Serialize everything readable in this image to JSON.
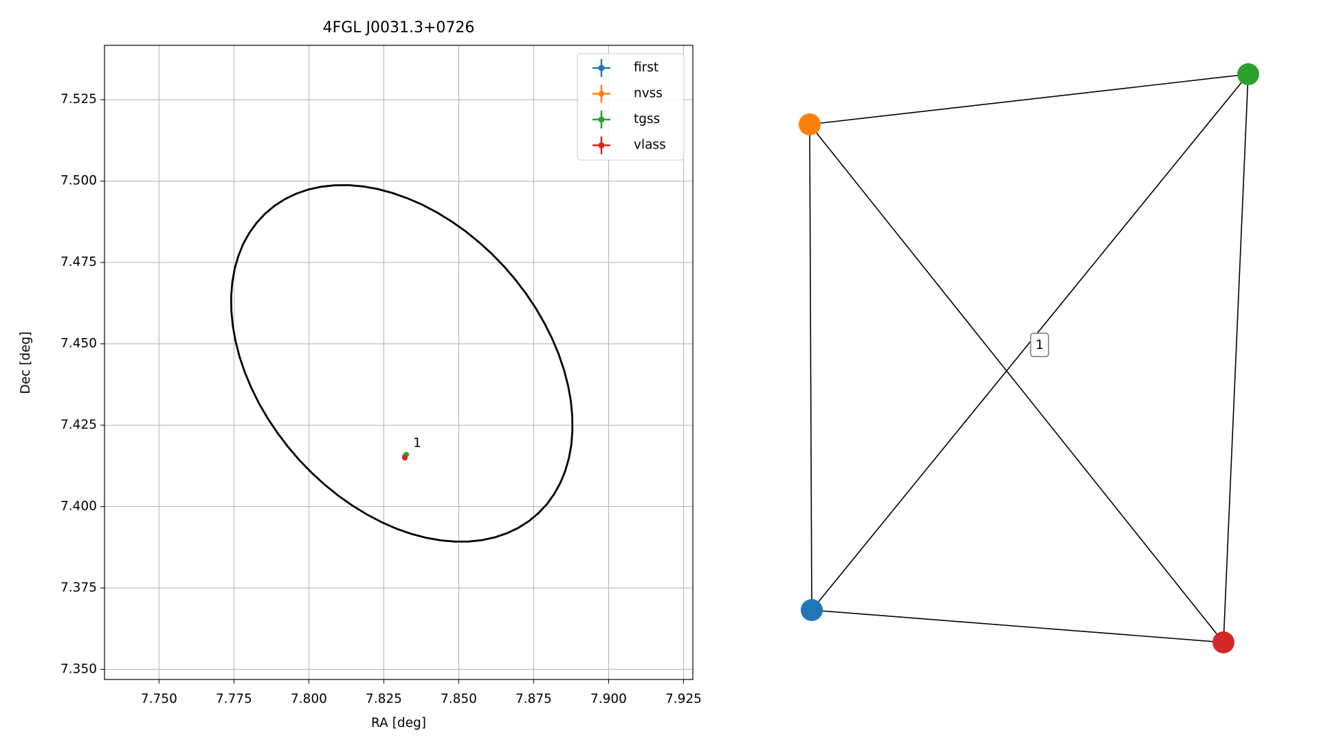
{
  "chart_data": [
    {
      "type": "scatter",
      "title": "4FGL J0031.3+0726",
      "xlabel": "RA [deg]",
      "ylabel": "Dec [deg]",
      "xlim": [
        7.7318,
        7.9281
      ],
      "ylim": [
        7.3469,
        7.5417
      ],
      "xticks": [
        {
          "value": 7.75,
          "label": "7.750"
        },
        {
          "value": 7.775,
          "label": "7.775"
        },
        {
          "value": 7.8,
          "label": "7.800"
        },
        {
          "value": 7.825,
          "label": "7.825"
        },
        {
          "value": 7.85,
          "label": "7.850"
        },
        {
          "value": 7.875,
          "label": "7.875"
        },
        {
          "value": 7.9,
          "label": "7.900"
        },
        {
          "value": 7.925,
          "label": "7.925"
        }
      ],
      "yticks": [
        {
          "value": 7.35,
          "label": "7.350"
        },
        {
          "value": 7.375,
          "label": "7.375"
        },
        {
          "value": 7.4,
          "label": "7.400"
        },
        {
          "value": 7.425,
          "label": "7.425"
        },
        {
          "value": 7.45,
          "label": "7.450"
        },
        {
          "value": 7.475,
          "label": "7.475"
        },
        {
          "value": 7.5,
          "label": "7.500"
        },
        {
          "value": 7.525,
          "label": "7.525"
        }
      ],
      "grid": true,
      "legend": "upper right",
      "series": [
        {
          "name": "first",
          "color": "#1f77b4",
          "x": [
            7.832
          ],
          "values": [
            7.4155
          ]
        },
        {
          "name": "nvss",
          "color": "#ff7f0e",
          "x": [
            7.8322
          ],
          "values": [
            7.4157
          ]
        },
        {
          "name": "tgss",
          "color": "#2ca02c",
          "x": [
            7.8325
          ],
          "values": [
            7.416
          ]
        },
        {
          "name": "vlass",
          "color": "#d62728",
          "x": [
            7.832
          ],
          "values": [
            7.415
          ]
        }
      ],
      "annotation": "1",
      "ellipse": {
        "center": [
          7.831,
          7.444
        ],
        "width": 0.1298,
        "height": 0.0902,
        "angle": -41.8
      }
    },
    {
      "type": "network",
      "nodes": [
        {
          "color": "#1f77b4"
        },
        {
          "color": "#ff7f0e"
        },
        {
          "color": "#2ca02c"
        },
        {
          "color": "#d62728"
        }
      ],
      "edges": [
        [
          0,
          1
        ],
        [
          0,
          2
        ],
        [
          0,
          3
        ],
        [
          1,
          2
        ],
        [
          1,
          3
        ],
        [
          2,
          3
        ]
      ],
      "edge_labels": [
        {
          "edge": 1,
          "label": "1"
        }
      ]
    }
  ]
}
